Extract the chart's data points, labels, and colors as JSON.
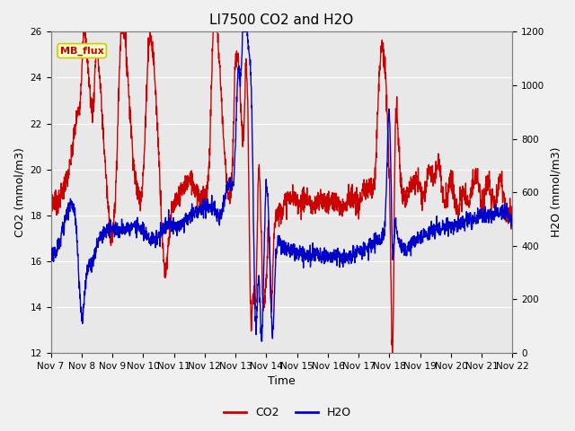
{
  "title": "LI7500 CO2 and H2O",
  "xlabel": "Time",
  "ylabel_left": "CO2 (mmol/m3)",
  "ylabel_right": "H2O (mmol/m3)",
  "ylim_left": [
    12,
    26
  ],
  "ylim_right": [
    0,
    1200
  ],
  "yticks_left": [
    12,
    14,
    16,
    18,
    20,
    22,
    24,
    26
  ],
  "yticks_right": [
    0,
    200,
    400,
    600,
    800,
    1000,
    1200
  ],
  "xtick_labels": [
    "Nov 7",
    "Nov 8",
    "Nov 9",
    "Nov 10",
    "Nov 11",
    "Nov 12",
    "Nov 13",
    "Nov 14",
    "Nov 15",
    "Nov 16",
    "Nov 17",
    "Nov 18",
    "Nov 19",
    "Nov 20",
    "Nov 21",
    "Nov 22"
  ],
  "co2_color": "#CC0000",
  "h2o_color": "#0000CC",
  "fig_facecolor": "#F0F0F0",
  "axes_facecolor": "#E8E8E8",
  "grid_color": "#FFFFFF",
  "text_box_facecolor": "#FFFFCC",
  "text_box_edgecolor": "#CCCC00",
  "text_box_label": "MB_flux",
  "text_box_textcolor": "#CC0000",
  "legend_co2": "CO2",
  "legend_h2o": "H2O",
  "title_fontsize": 11,
  "axis_label_fontsize": 9,
  "tick_fontsize": 7.5,
  "legend_fontsize": 9,
  "co2_linewidth": 1.0,
  "h2o_linewidth": 1.0,
  "n_days": 15,
  "pts_per_day": 144
}
